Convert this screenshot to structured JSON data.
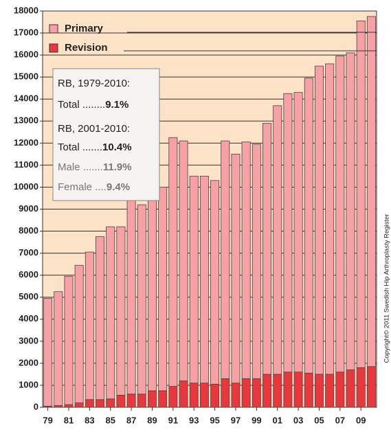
{
  "chart_data": {
    "type": "stacked_bar",
    "categories": [
      "79",
      null,
      "81",
      null,
      "83",
      null,
      "85",
      null,
      "87",
      null,
      "89",
      null,
      "91",
      null,
      "93",
      null,
      "95",
      null,
      "97",
      null,
      "99",
      null,
      "01",
      null,
      "03",
      null,
      "05",
      null,
      "07",
      null,
      "09",
      null
    ],
    "series": [
      {
        "name": "Revision",
        "color": "#e8383d",
        "values": [
          50,
          80,
          120,
          200,
          350,
          350,
          380,
          550,
          600,
          600,
          750,
          750,
          950,
          1200,
          1100,
          1100,
          1050,
          1300,
          1100,
          1300,
          1300,
          1500,
          1500,
          1600,
          1600,
          1550,
          1500,
          1500,
          1600,
          1700,
          1800,
          1850
        ]
      },
      {
        "name": "Primary",
        "color": "#f7a1a7",
        "values": [
          4900,
          5170,
          5830,
          6250,
          6700,
          7400,
          7820,
          7650,
          8800,
          8600,
          8850,
          9250,
          11300,
          10900,
          9400,
          9400,
          9250,
          10800,
          10400,
          10750,
          10650,
          11400,
          12200,
          12650,
          12700,
          13400,
          14000,
          14100,
          14350,
          14400,
          15750,
          15900
        ]
      }
    ],
    "ylim": [
      0,
      18000
    ],
    "yticks": [
      0,
      1000,
      2000,
      3000,
      4000,
      5000,
      6000,
      7000,
      8000,
      9000,
      10000,
      11000,
      12000,
      13000,
      14000,
      15000,
      16000,
      17000,
      18000
    ],
    "grid": true,
    "background": "#fce2c6",
    "annotations": [
      {
        "text": "RB, 1979-2010:"
      },
      {
        "label": "Total ........",
        "value": "9.1%"
      },
      {
        "text": "RB, 2001-2010:"
      },
      {
        "label": "Total .......",
        "value": "10.4%"
      },
      {
        "label": "Male .......",
        "value": "11.9%"
      },
      {
        "label": "Female ....",
        "value": "9.4%"
      }
    ],
    "copyright": "Copyright© 2011 Swedish Hip Arthroplasty Register"
  }
}
